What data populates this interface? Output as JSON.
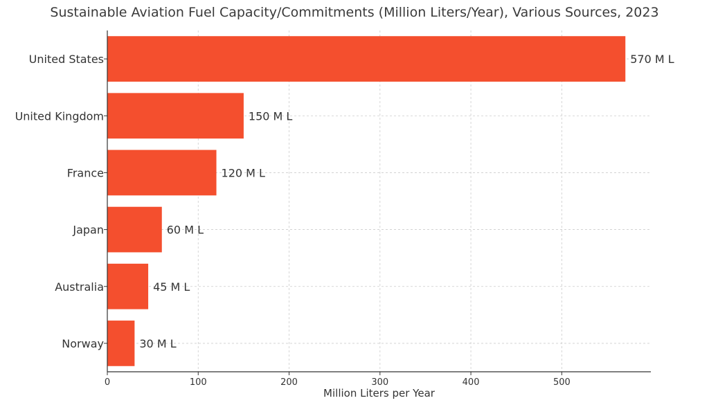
{
  "chart_data": {
    "type": "bar",
    "orientation": "horizontal",
    "title": "Sustainable Aviation Fuel Capacity/Commitments (Million Liters/Year), Various Sources, 2023",
    "xlabel": "Million Liters per Year",
    "ylabel": "",
    "categories": [
      "United States",
      "United Kingdom",
      "France",
      "Japan",
      "Australia",
      "Norway"
    ],
    "values": [
      570,
      150,
      120,
      60,
      45,
      30
    ],
    "data_labels": [
      "570 M L",
      "150 M L",
      "120 M L",
      "60 M L",
      "45 M L",
      "30 M L"
    ],
    "xlim": [
      0,
      598
    ],
    "xticks": [
      0,
      100,
      200,
      300,
      400,
      500
    ],
    "grid": true,
    "bar_color": "#f44f2e"
  }
}
